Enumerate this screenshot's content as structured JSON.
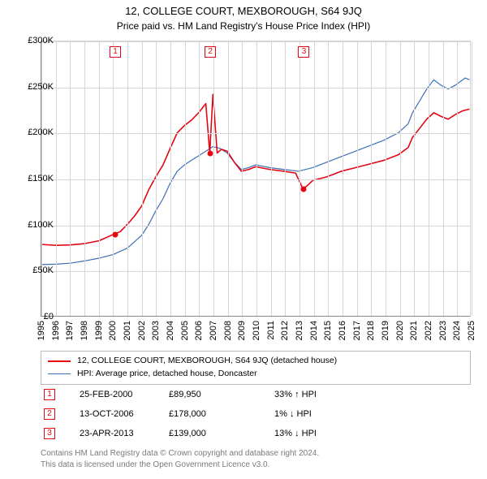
{
  "title": "12, COLLEGE COURT, MEXBOROUGH, S64 9JQ",
  "subtitle": "Price paid vs. HM Land Registry's House Price Index (HPI)",
  "chart": {
    "type": "line",
    "background_color": "#ffffff",
    "grid_color": "#d6d6d6",
    "axis_color": "#888888",
    "ylim": [
      0,
      300000
    ],
    "ytick_step": 50000,
    "yticks": [
      "£0",
      "£50K",
      "£100K",
      "£150K",
      "£200K",
      "£250K",
      "£300K"
    ],
    "xlim": [
      1995,
      2025
    ],
    "xticks": [
      1995,
      1996,
      1997,
      1998,
      1999,
      2000,
      2001,
      2002,
      2003,
      2004,
      2005,
      2006,
      2007,
      2008,
      2009,
      2010,
      2011,
      2012,
      2013,
      2014,
      2015,
      2016,
      2017,
      2018,
      2019,
      2020,
      2021,
      2022,
      2023,
      2024,
      2025
    ],
    "title_fontsize": 13,
    "subtitle_fontsize": 12,
    "tick_fontsize": 11,
    "series": {
      "price_paid": {
        "label": "12, COLLEGE COURT, MEXBOROUGH, S64 9JQ (detached house)",
        "color": "#e30613",
        "line_width": 1.6,
        "points": [
          [
            1995,
            78000
          ],
          [
            1996,
            77000
          ],
          [
            1997,
            77500
          ],
          [
            1998,
            79000
          ],
          [
            1999,
            82000
          ],
          [
            2000.15,
            89950
          ],
          [
            2000.5,
            92000
          ],
          [
            2001,
            100000
          ],
          [
            2001.5,
            109000
          ],
          [
            2002,
            120000
          ],
          [
            2002.5,
            138000
          ],
          [
            2003,
            152000
          ],
          [
            2003.5,
            165000
          ],
          [
            2004,
            183000
          ],
          [
            2004.5,
            200000
          ],
          [
            2005,
            208000
          ],
          [
            2005.5,
            214000
          ],
          [
            2006,
            222000
          ],
          [
            2006.5,
            232000
          ],
          [
            2006.78,
            178000
          ],
          [
            2007,
            242000
          ],
          [
            2007.3,
            178000
          ],
          [
            2007.6,
            182000
          ],
          [
            2008,
            180000
          ],
          [
            2008.5,
            168000
          ],
          [
            2009,
            158000
          ],
          [
            2009.5,
            160000
          ],
          [
            2010,
            163000
          ],
          [
            2011,
            160000
          ],
          [
            2012,
            158000
          ],
          [
            2012.8,
            156000
          ],
          [
            2013.31,
            139000
          ],
          [
            2013.6,
            142000
          ],
          [
            2014,
            148000
          ],
          [
            2015,
            152000
          ],
          [
            2016,
            158000
          ],
          [
            2017,
            162000
          ],
          [
            2018,
            166000
          ],
          [
            2019,
            170000
          ],
          [
            2020,
            176000
          ],
          [
            2020.7,
            184000
          ],
          [
            2021,
            195000
          ],
          [
            2021.5,
            205000
          ],
          [
            2022,
            215000
          ],
          [
            2022.5,
            222000
          ],
          [
            2023,
            218000
          ],
          [
            2023.5,
            215000
          ],
          [
            2024,
            220000
          ],
          [
            2024.5,
            224000
          ],
          [
            2025,
            226000
          ]
        ]
      },
      "hpi": {
        "label": "HPI: Average price, detached house, Doncaster",
        "color": "#3b6fb6",
        "line_width": 1.2,
        "points": [
          [
            1995,
            56000
          ],
          [
            1996,
            56500
          ],
          [
            1997,
            57500
          ],
          [
            1998,
            60000
          ],
          [
            1999,
            63000
          ],
          [
            2000,
            67000
          ],
          [
            2001,
            74000
          ],
          [
            2002,
            88000
          ],
          [
            2002.5,
            100000
          ],
          [
            2003,
            115000
          ],
          [
            2003.5,
            128000
          ],
          [
            2004,
            145000
          ],
          [
            2004.5,
            158000
          ],
          [
            2005,
            165000
          ],
          [
            2005.5,
            170000
          ],
          [
            2006,
            175000
          ],
          [
            2006.5,
            180000
          ],
          [
            2007,
            185000
          ],
          [
            2007.5,
            183000
          ],
          [
            2008,
            178000
          ],
          [
            2008.5,
            168000
          ],
          [
            2009,
            160000
          ],
          [
            2009.5,
            162000
          ],
          [
            2010,
            165000
          ],
          [
            2011,
            162000
          ],
          [
            2012,
            160000
          ],
          [
            2013,
            158000
          ],
          [
            2014,
            162000
          ],
          [
            2015,
            168000
          ],
          [
            2016,
            174000
          ],
          [
            2017,
            180000
          ],
          [
            2018,
            186000
          ],
          [
            2019,
            192000
          ],
          [
            2020,
            200000
          ],
          [
            2020.7,
            210000
          ],
          [
            2021,
            222000
          ],
          [
            2021.5,
            235000
          ],
          [
            2022,
            248000
          ],
          [
            2022.5,
            258000
          ],
          [
            2023,
            252000
          ],
          [
            2023.5,
            248000
          ],
          [
            2024,
            252000
          ],
          [
            2024.7,
            260000
          ],
          [
            2025,
            258000
          ]
        ]
      }
    },
    "sale_markers": [
      {
        "n": "1",
        "year": 2000.15,
        "price": 89950
      },
      {
        "n": "2",
        "year": 2006.78,
        "price": 178000
      },
      {
        "n": "3",
        "year": 2013.31,
        "price": 139000
      }
    ],
    "marker_border_color": "#e30613",
    "marker_text_color": "#e30613",
    "dot_color": "#e30613"
  },
  "legend": {
    "items": [
      {
        "color": "#e30613",
        "text": "12, COLLEGE COURT, MEXBOROUGH, S64 9JQ (detached house)"
      },
      {
        "color": "#3b6fb6",
        "text": "HPI: Average price, detached house, Doncaster"
      }
    ]
  },
  "sales_table": {
    "rows": [
      {
        "n": "1",
        "date": "25-FEB-2000",
        "price": "£89,950",
        "pct": "33% ↑ HPI"
      },
      {
        "n": "2",
        "date": "13-OCT-2006",
        "price": "£178,000",
        "pct": "1% ↓ HPI"
      },
      {
        "n": "3",
        "date": "23-APR-2013",
        "price": "£139,000",
        "pct": "13% ↓ HPI"
      }
    ],
    "box_border_color": "#e30613",
    "box_text_color": "#e30613"
  },
  "license": {
    "line1": "Contains HM Land Registry data © Crown copyright and database right 2024.",
    "line2": "This data is licensed under the Open Government Licence v3.0.",
    "color": "#7a7a7a"
  }
}
